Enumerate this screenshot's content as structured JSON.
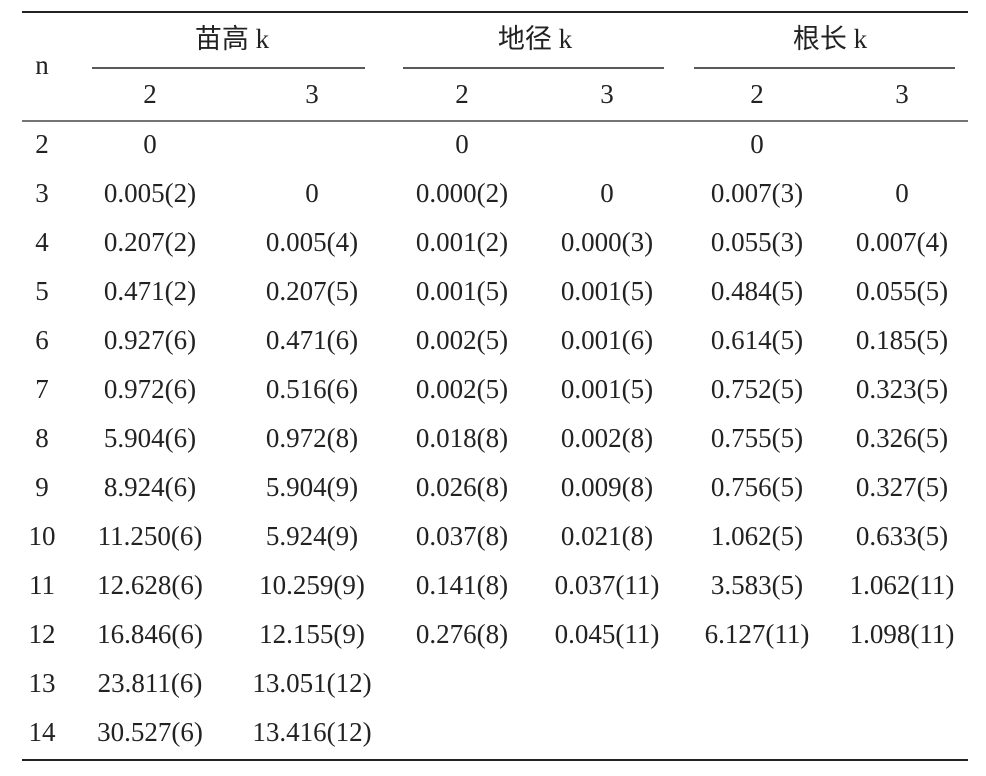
{
  "table": {
    "corner": "n",
    "groups": [
      "苗高 k",
      "地径 k",
      "根长 k"
    ],
    "subheaders": [
      "2",
      "3",
      "2",
      "3",
      "2",
      "3"
    ],
    "rows": [
      [
        "2",
        "0",
        null,
        "0",
        null,
        "0",
        null
      ],
      [
        "3",
        "0.005(2)",
        "0",
        "0.000(2)",
        "0",
        "0.007(3)",
        "0"
      ],
      [
        "4",
        "0.207(2)",
        "0.005(4)",
        "0.001(2)",
        "0.000(3)",
        "0.055(3)",
        "0.007(4)"
      ],
      [
        "5",
        "0.471(2)",
        "0.207(5)",
        "0.001(5)",
        "0.001(5)",
        "0.484(5)",
        "0.055(5)"
      ],
      [
        "6",
        "0.927(6)",
        "0.471(6)",
        "0.002(5)",
        "0.001(6)",
        "0.614(5)",
        "0.185(5)"
      ],
      [
        "7",
        "0.972(6)",
        "0.516(6)",
        "0.002(5)",
        "0.001(5)",
        "0.752(5)",
        "0.323(5)"
      ],
      [
        "8",
        "5.904(6)",
        "0.972(8)",
        "0.018(8)",
        "0.002(8)",
        "0.755(5)",
        "0.326(5)"
      ],
      [
        "9",
        "8.924(6)",
        "5.904(9)",
        "0.026(8)",
        "0.009(8)",
        "0.756(5)",
        "0.327(5)"
      ],
      [
        "10",
        "11.250(6)",
        "5.924(9)",
        "0.037(8)",
        "0.021(8)",
        "1.062(5)",
        "0.633(5)"
      ],
      [
        "11",
        "12.628(6)",
        "10.259(9)",
        "0.141(8)",
        "0.037(11)",
        "3.583(5)",
        "1.062(11)"
      ],
      [
        "12",
        "16.846(6)",
        "12.155(9)",
        "0.276(8)",
        "0.045(11)",
        "6.127(11)",
        "1.098(11)"
      ],
      [
        "13",
        "23.811(6)",
        "13.051(12)"
      ],
      [
        "14",
        "30.527(6)",
        "13.416(12)"
      ]
    ]
  }
}
